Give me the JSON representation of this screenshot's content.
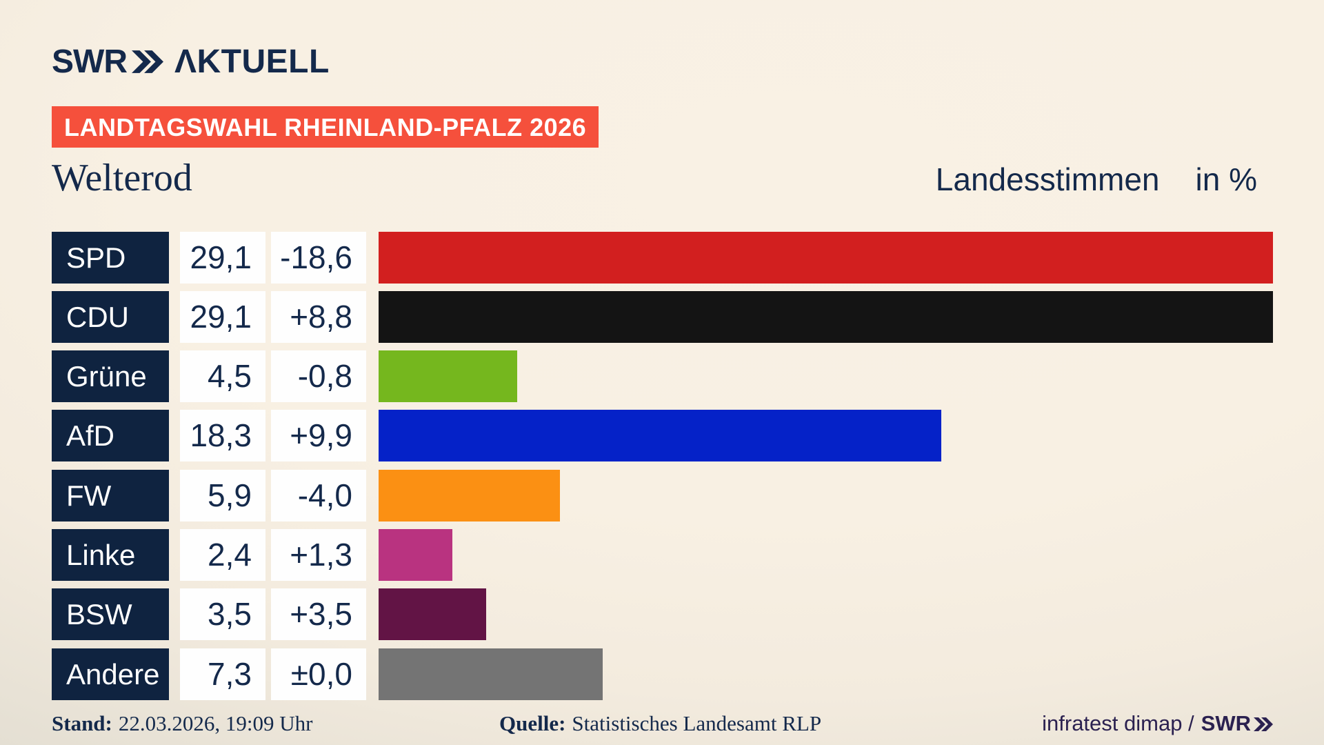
{
  "header": {
    "logo_swr": "SWR",
    "logo_aktuell": "ΛKTUELL",
    "banner": "LANDTAGSWAHL RHEINLAND-PFALZ 2026"
  },
  "title": {
    "location": "Welterod",
    "measure": "Landesstimmen",
    "unit": "in %"
  },
  "chart_data": {
    "type": "bar",
    "orientation": "horizontal",
    "title": "Landtagswahl Rheinland-Pfalz 2026 — Welterod, Landesstimmen in %",
    "unit": "percent",
    "max_value": 29.1,
    "categories": [
      "SPD",
      "CDU",
      "Grüne",
      "AfD",
      "FW",
      "Linke",
      "BSW",
      "Andere"
    ],
    "values": [
      29.1,
      29.1,
      4.5,
      18.3,
      5.9,
      2.4,
      3.5,
      7.3
    ],
    "value_labels": [
      "29,1",
      "29,1",
      "4,5",
      "18,3",
      "5,9",
      "2,4",
      "3,5",
      "7,3"
    ],
    "changes": [
      "-18,6",
      "+8,8",
      "-0,8",
      "+9,9",
      "-4,0",
      "+1,3",
      "+3,5",
      "±0,0"
    ],
    "bar_colors": [
      "#d21f1f",
      "#141414",
      "#75b71e",
      "#0522c8",
      "#fb9013",
      "#b93380",
      "#621445",
      "#747474"
    ],
    "legend": "none",
    "grid": false
  },
  "footer": {
    "stand_label": "Stand:",
    "stand_value": "22.03.2026, 19:09 Uhr",
    "quelle_label": "Quelle:",
    "quelle_value": "Statistisches Landesamt RLP",
    "credit_text": "infratest dimap /",
    "credit_logo": "SWR"
  },
  "colors": {
    "banner": "#f5503c",
    "navy": "#0f2340",
    "ink": "#14294b",
    "credit": "#2b2150"
  }
}
